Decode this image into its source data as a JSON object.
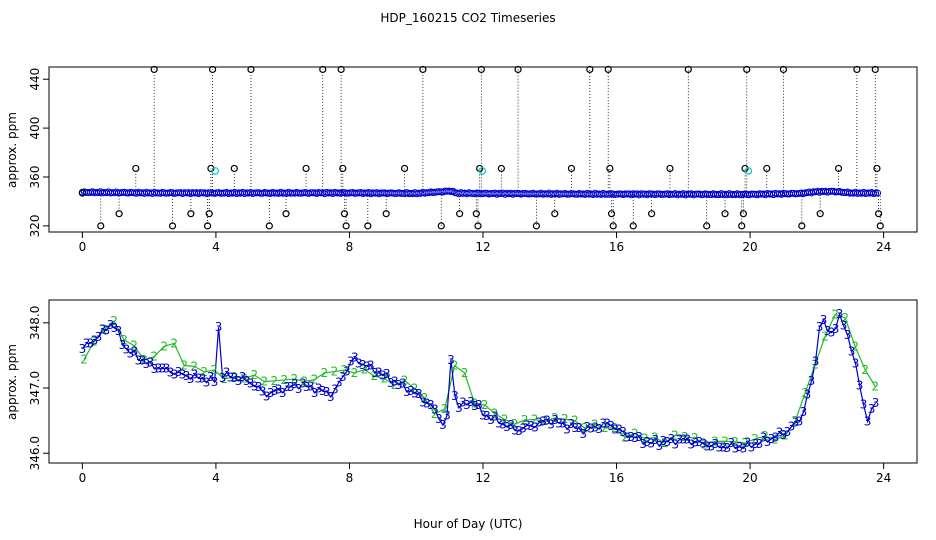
{
  "title": "HDP_160215  CO2 Timeseries",
  "xlabel": "Hour of Day (UTC)",
  "colors": {
    "series_3": "#0000cc",
    "series_2": "#22bb22",
    "flag_marker": "#000000",
    "highlight": "#00cccc",
    "axis": "#000000"
  },
  "chart_data": [
    {
      "type": "scatter",
      "panel": "top",
      "ylabel": "approx. ppm",
      "xlim": [
        -1,
        25
      ],
      "ylim": [
        315,
        450
      ],
      "xticks": [
        0,
        4,
        8,
        12,
        16,
        20,
        24
      ],
      "yticks": [
        320,
        360,
        400,
        440
      ],
      "grid": false,
      "baseline_series": {
        "name": "",
        "x_start": 0.0,
        "x_end": 23.85,
        "x_step": 0.06,
        "y_profile_x": [
          0,
          2,
          4,
          8,
          10,
          11.05,
          11.2,
          12,
          16,
          18,
          20,
          21.5,
          22.0,
          22.5,
          23.0,
          23.8
        ],
        "y_profile_y": [
          347.5,
          347.0,
          346.9,
          347.0,
          346.6,
          348.5,
          346.8,
          346.5,
          346.0,
          345.9,
          345.8,
          346.5,
          348.0,
          348.2,
          347.0,
          346.8
        ]
      },
      "flagged_points": [
        {
          "x": 0.0,
          "y": 346.8
        },
        {
          "x": 0.55,
          "y": 320
        },
        {
          "x": 1.1,
          "y": 330
        },
        {
          "x": 1.6,
          "y": 367
        },
        {
          "x": 2.15,
          "y": 448
        },
        {
          "x": 2.7,
          "y": 320
        },
        {
          "x": 3.25,
          "y": 330
        },
        {
          "x": 3.75,
          "y": 320
        },
        {
          "x": 3.8,
          "y": 330
        },
        {
          "x": 3.85,
          "y": 367
        },
        {
          "x": 3.9,
          "y": 448
        },
        {
          "x": 4.55,
          "y": 367
        },
        {
          "x": 5.05,
          "y": 448
        },
        {
          "x": 5.6,
          "y": 320
        },
        {
          "x": 6.1,
          "y": 330
        },
        {
          "x": 6.7,
          "y": 367
        },
        {
          "x": 7.2,
          "y": 448
        },
        {
          "x": 7.75,
          "y": 448
        },
        {
          "x": 7.8,
          "y": 367
        },
        {
          "x": 7.85,
          "y": 330
        },
        {
          "x": 7.9,
          "y": 320
        },
        {
          "x": 8.55,
          "y": 320
        },
        {
          "x": 9.1,
          "y": 330
        },
        {
          "x": 9.65,
          "y": 367
        },
        {
          "x": 10.2,
          "y": 448
        },
        {
          "x": 10.75,
          "y": 320
        },
        {
          "x": 11.3,
          "y": 330
        },
        {
          "x": 11.8,
          "y": 330
        },
        {
          "x": 11.85,
          "y": 320
        },
        {
          "x": 11.9,
          "y": 367
        },
        {
          "x": 11.95,
          "y": 448
        },
        {
          "x": 12.55,
          "y": 367
        },
        {
          "x": 13.05,
          "y": 448
        },
        {
          "x": 13.6,
          "y": 320
        },
        {
          "x": 14.15,
          "y": 330
        },
        {
          "x": 14.65,
          "y": 367
        },
        {
          "x": 15.2,
          "y": 448
        },
        {
          "x": 15.75,
          "y": 448
        },
        {
          "x": 15.8,
          "y": 367
        },
        {
          "x": 15.85,
          "y": 330
        },
        {
          "x": 15.9,
          "y": 320
        },
        {
          "x": 16.5,
          "y": 320
        },
        {
          "x": 17.05,
          "y": 330
        },
        {
          "x": 17.6,
          "y": 367
        },
        {
          "x": 18.15,
          "y": 448
        },
        {
          "x": 18.7,
          "y": 320
        },
        {
          "x": 19.25,
          "y": 330
        },
        {
          "x": 19.75,
          "y": 320
        },
        {
          "x": 19.8,
          "y": 330
        },
        {
          "x": 19.85,
          "y": 367
        },
        {
          "x": 19.9,
          "y": 448
        },
        {
          "x": 20.5,
          "y": 367
        },
        {
          "x": 21.0,
          "y": 448
        },
        {
          "x": 21.55,
          "y": 320
        },
        {
          "x": 22.1,
          "y": 330
        },
        {
          "x": 22.65,
          "y": 367
        },
        {
          "x": 23.2,
          "y": 448
        },
        {
          "x": 23.75,
          "y": 448
        },
        {
          "x": 23.8,
          "y": 367
        },
        {
          "x": 23.85,
          "y": 330
        },
        {
          "x": 23.9,
          "y": 320
        }
      ],
      "highlight_points": [
        {
          "x": 3.98,
          "y": 365
        },
        {
          "x": 11.98,
          "y": 365
        },
        {
          "x": 19.95,
          "y": 365
        }
      ]
    },
    {
      "type": "line",
      "panel": "bottom",
      "ylabel": "approx. ppm",
      "xlim": [
        -1,
        25
      ],
      "ylim": [
        345.85,
        348.35
      ],
      "xticks": [
        0,
        4,
        8,
        12,
        16,
        20,
        24
      ],
      "yticks": [
        346.0,
        347.0,
        348.0
      ],
      "ytick_labels": [
        "346.0",
        "347.0",
        "348.0"
      ],
      "grid": false,
      "series": [
        {
          "name": "",
          "marker": "3",
          "x_start": 0.0,
          "x_end": 23.85,
          "x_step": 0.12,
          "y_profile_x": [
            0,
            0.5,
            0.9,
            1.3,
            2.0,
            3.0,
            4.0,
            4.05,
            4.12,
            4.2,
            5.0,
            5.5,
            6.5,
            7.5,
            8.1,
            9.0,
            10.0,
            10.5,
            10.8,
            11.0,
            11.07,
            11.15,
            11.3,
            11.7,
            12.0,
            13.0,
            14.0,
            15.0,
            15.8,
            16.2,
            17.0,
            18.0,
            19.0,
            19.9,
            20.5,
            21.0,
            21.5,
            21.8,
            22.0,
            22.1,
            22.4,
            22.7,
            23.0,
            23.3,
            23.5,
            23.8
          ],
          "y_profile_y": [
            347.6,
            347.8,
            348.0,
            347.6,
            347.35,
            347.2,
            347.1,
            347.8,
            348.1,
            347.2,
            347.1,
            346.9,
            347.05,
            346.9,
            347.45,
            347.2,
            346.9,
            346.7,
            346.45,
            346.6,
            348.05,
            346.9,
            346.7,
            346.8,
            346.6,
            346.35,
            346.5,
            346.35,
            346.45,
            346.3,
            346.15,
            346.2,
            346.1,
            346.1,
            346.2,
            346.3,
            346.5,
            347.0,
            347.5,
            348.1,
            347.8,
            348.1,
            347.7,
            347.0,
            346.5,
            346.8
          ]
        },
        {
          "name": "",
          "marker": "2",
          "x_start": 0.05,
          "x_end": 23.85,
          "x_step": 0.3,
          "y_profile_x": [
            0,
            0.9,
            1.3,
            2.0,
            2.6,
            3.0,
            4.0,
            5.0,
            6.5,
            8.0,
            9.0,
            10.0,
            10.8,
            11.0,
            11.35,
            11.5,
            12.0,
            13.0,
            14.0,
            15.0,
            16.0,
            17.0,
            18.0,
            19.0,
            20.0,
            21.0,
            21.5,
            22.0,
            22.6,
            23.0,
            23.5,
            23.8
          ],
          "y_profile_y": [
            347.4,
            348.1,
            347.7,
            347.4,
            347.75,
            347.4,
            347.2,
            347.15,
            347.1,
            347.3,
            347.15,
            347.0,
            346.5,
            346.95,
            347.9,
            346.9,
            346.7,
            346.45,
            346.55,
            346.45,
            346.35,
            346.2,
            346.25,
            346.15,
            346.2,
            346.25,
            346.6,
            347.5,
            348.2,
            347.9,
            347.2,
            347.0
          ]
        }
      ]
    }
  ]
}
